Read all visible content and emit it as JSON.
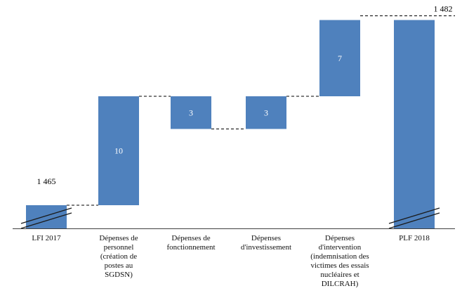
{
  "chart_data": {
    "type": "waterfall",
    "title": "",
    "bar_color": "#4f81bd",
    "connector_color": "#000000",
    "connector_style": "dashed",
    "axis": {
      "baseline_visible": true,
      "y_axis_truncated": true
    },
    "categories": [
      "LFI 2017",
      "Dépenses de personnel (création de postes au SGDSN)",
      "Dépenses de fonctionnement",
      "Dépenses d'investissement",
      "Dépenses d'intervention (indemnisation des victimes des essais nucléaires et DILCRAH)",
      "PLF 2018"
    ],
    "bars": [
      {
        "category": "LFI 2017",
        "kind": "total",
        "value": 1465,
        "label": "1 465",
        "label_position": "above",
        "axis_break": true
      },
      {
        "category": "Dépenses de personnel (création de postes au SGDSN)",
        "kind": "increase",
        "value": 10,
        "label": "10",
        "label_position": "inside",
        "axis_break": false
      },
      {
        "category": "Dépenses de fonctionnement",
        "kind": "decrease",
        "value": 3,
        "label": "3",
        "label_position": "inside",
        "axis_break": false
      },
      {
        "category": "Dépenses d'investissement",
        "kind": "increase",
        "value": 3,
        "label": "3",
        "label_position": "inside",
        "axis_break": false
      },
      {
        "category": "Dépenses d'intervention (indemnisation des victimes des essais nucléaires et DILCRAH)",
        "kind": "increase",
        "value": 7,
        "label": "7",
        "label_position": "inside",
        "axis_break": false
      },
      {
        "category": "PLF 2018",
        "kind": "total",
        "value": 1482,
        "label": "1 482",
        "label_position": "above",
        "axis_break": true
      }
    ]
  }
}
